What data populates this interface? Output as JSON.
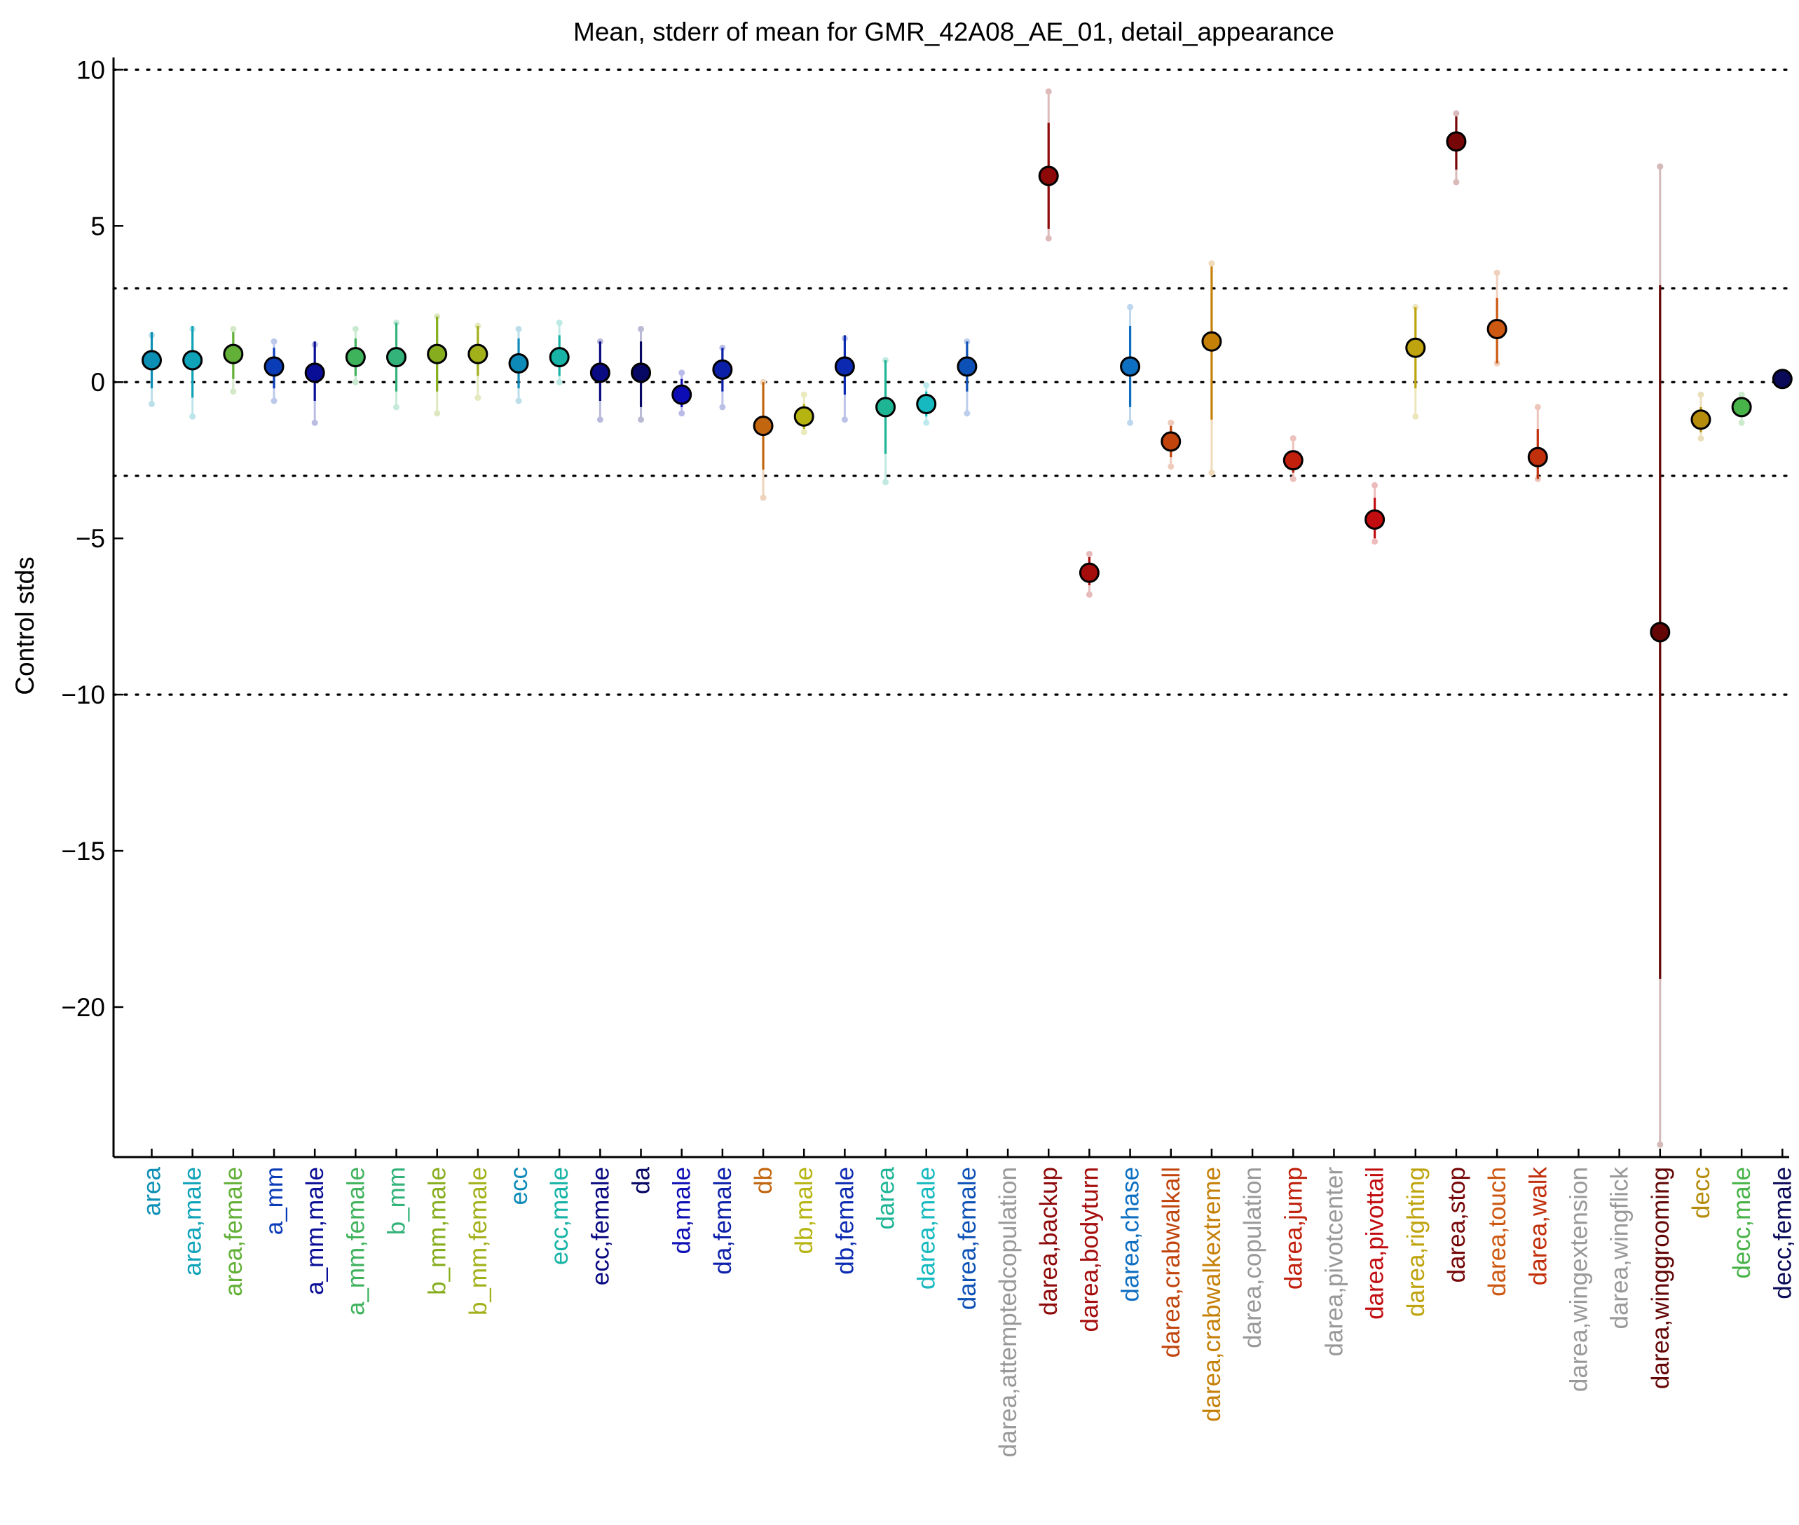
{
  "chart_data": {
    "type": "scatter",
    "title": "Mean, stderr of mean for GMR_42A08_AE_01, detail_appearance",
    "xlabel": "",
    "ylabel": "Control stds",
    "ylim": [
      -24.8,
      10.3
    ],
    "yticks": [
      10,
      5,
      0,
      -5,
      -10,
      -15,
      -20
    ],
    "reference_lines": [
      10,
      3,
      0,
      -3,
      -10
    ],
    "grid": false,
    "series": [
      {
        "label": "area",
        "mean": 0.7,
        "se_lo": -0.2,
        "se_hi": 1.6,
        "range_lo": -0.7,
        "range_hi": 1.5,
        "color": "#0c8fb4"
      },
      {
        "label": "area,male",
        "mean": 0.7,
        "se_lo": -0.5,
        "se_hi": 1.8,
        "range_lo": -1.1,
        "range_hi": 1.7,
        "color": "#0fa3b9"
      },
      {
        "label": "area,female",
        "mean": 0.9,
        "se_lo": 0.1,
        "se_hi": 1.6,
        "range_lo": -0.3,
        "range_hi": 1.7,
        "color": "#62b037"
      },
      {
        "label": "a_mm",
        "mean": 0.5,
        "se_lo": -0.2,
        "se_hi": 1.1,
        "range_lo": -0.6,
        "range_hi": 1.3,
        "color": "#0b3cb8"
      },
      {
        "label": "a_mm,male",
        "mean": 0.3,
        "se_lo": -0.6,
        "se_hi": 1.3,
        "range_lo": -1.3,
        "range_hi": 1.2,
        "color": "#0a0e96"
      },
      {
        "label": "a_mm,female",
        "mean": 0.8,
        "se_lo": 0.2,
        "se_hi": 1.4,
        "range_lo": 0.0,
        "range_hi": 1.7,
        "color": "#3fb25c"
      },
      {
        "label": "b_mm",
        "mean": 0.8,
        "se_lo": -0.3,
        "se_hi": 1.9,
        "range_lo": -0.8,
        "range_hi": 1.9,
        "color": "#33b37a"
      },
      {
        "label": "b_mm,male",
        "mean": 0.9,
        "se_lo": -0.3,
        "se_hi": 2.1,
        "range_lo": -1.0,
        "range_hi": 2.1,
        "color": "#86ad1d"
      },
      {
        "label": "b_mm,female",
        "mean": 0.9,
        "se_lo": 0.2,
        "se_hi": 1.8,
        "range_lo": -0.5,
        "range_hi": 1.8,
        "color": "#a2b019"
      },
      {
        "label": "ecc",
        "mean": 0.6,
        "se_lo": -0.2,
        "se_hi": 1.4,
        "range_lo": -0.6,
        "range_hi": 1.7,
        "color": "#0e8ab8"
      },
      {
        "label": "ecc,male",
        "mean": 0.8,
        "se_lo": 0.2,
        "se_hi": 1.5,
        "range_lo": 0.0,
        "range_hi": 1.9,
        "color": "#17b3a6"
      },
      {
        "label": "ecc,female",
        "mean": 0.3,
        "se_lo": -0.6,
        "se_hi": 1.3,
        "range_lo": -1.2,
        "range_hi": 1.3,
        "color": "#0a0a82"
      },
      {
        "label": "da",
        "mean": 0.3,
        "se_lo": -0.8,
        "se_hi": 1.3,
        "range_lo": -1.2,
        "range_hi": 1.7,
        "color": "#070764"
      },
      {
        "label": "da,male",
        "mean": -0.4,
        "se_lo": -0.8,
        "se_hi": 0.1,
        "range_lo": -1.0,
        "range_hi": 0.3,
        "color": "#0d0db5"
      },
      {
        "label": "da,female",
        "mean": 0.4,
        "se_lo": -0.3,
        "se_hi": 1.1,
        "range_lo": -0.8,
        "range_hi": 1.1,
        "color": "#0c1fa8"
      },
      {
        "label": "db",
        "mean": -1.4,
        "se_lo": -2.8,
        "se_hi": 0.0,
        "range_lo": -3.7,
        "range_hi": 0.0,
        "color": "#c2660f"
      },
      {
        "label": "db,male",
        "mean": -1.1,
        "se_lo": -1.5,
        "se_hi": -0.7,
        "range_lo": -1.6,
        "range_hi": -0.4,
        "color": "#b6b410"
      },
      {
        "label": "db,female",
        "mean": 0.5,
        "se_lo": -0.4,
        "se_hi": 1.5,
        "range_lo": -1.2,
        "range_hi": 1.4,
        "color": "#0b2ab1"
      },
      {
        "label": "darea",
        "mean": -0.8,
        "se_lo": -2.3,
        "se_hi": 0.7,
        "range_lo": -3.2,
        "range_hi": 0.7,
        "color": "#1eb595"
      },
      {
        "label": "darea,male",
        "mean": -0.7,
        "se_lo": -1.1,
        "se_hi": -0.3,
        "range_lo": -1.3,
        "range_hi": -0.1,
        "color": "#15b9bf"
      },
      {
        "label": "darea,female",
        "mean": 0.5,
        "se_lo": -0.3,
        "se_hi": 1.3,
        "range_lo": -1.0,
        "range_hi": 1.3,
        "color": "#0e51b6"
      },
      {
        "label": "darea,attemptedcopulation",
        "color": "#999999"
      },
      {
        "label": "darea,backup",
        "mean": 6.6,
        "se_lo": 4.9,
        "se_hi": 8.3,
        "range_lo": 4.6,
        "range_hi": 9.3,
        "color": "#8e0a0a"
      },
      {
        "label": "darea,bodyturn",
        "mean": -6.1,
        "se_lo": -6.5,
        "se_hi": -5.6,
        "range_lo": -6.8,
        "range_hi": -5.5,
        "color": "#a50c0c"
      },
      {
        "label": "darea,chase",
        "mean": 0.5,
        "se_lo": -0.8,
        "se_hi": 1.8,
        "range_lo": -1.3,
        "range_hi": 2.4,
        "color": "#0e6fc1"
      },
      {
        "label": "darea,crabwalkall",
        "mean": -1.9,
        "se_lo": -2.4,
        "se_hi": -1.4,
        "range_lo": -2.7,
        "range_hi": -1.3,
        "color": "#c1440c"
      },
      {
        "label": "darea,crabwalkextreme",
        "mean": 1.3,
        "se_lo": -1.2,
        "se_hi": 3.7,
        "range_lo": -2.9,
        "range_hi": 3.8,
        "color": "#c58008"
      },
      {
        "label": "darea,copulation",
        "color": "#999999"
      },
      {
        "label": "darea,jump",
        "mean": -2.5,
        "se_lo": -2.9,
        "se_hi": -2.2,
        "range_lo": -3.1,
        "range_hi": -1.8,
        "color": "#c0200c"
      },
      {
        "label": "darea,pivotcenter",
        "color": "#999999"
      },
      {
        "label": "darea,pivottail",
        "mean": -4.4,
        "se_lo": -5.0,
        "se_hi": -3.7,
        "range_lo": -5.1,
        "range_hi": -3.3,
        "color": "#c20d10"
      },
      {
        "label": "darea,righting",
        "mean": 1.1,
        "se_lo": -0.2,
        "se_hi": 2.4,
        "range_lo": -1.1,
        "range_hi": 2.4,
        "color": "#bfa40f"
      },
      {
        "label": "darea,stop",
        "mean": 7.7,
        "se_lo": 6.8,
        "se_hi": 8.5,
        "range_lo": 6.4,
        "range_hi": 8.6,
        "color": "#760607"
      },
      {
        "label": "darea,touch",
        "mean": 1.7,
        "se_lo": 0.6,
        "se_hi": 2.7,
        "range_lo": 0.6,
        "range_hi": 3.5,
        "color": "#cc5812"
      },
      {
        "label": "darea,walk",
        "mean": -2.4,
        "se_lo": -3.1,
        "se_hi": -1.5,
        "range_lo": -3.1,
        "range_hi": -0.8,
        "color": "#c1300c"
      },
      {
        "label": "darea,wingextension",
        "color": "#999999"
      },
      {
        "label": "darea,wingflick",
        "color": "#999999"
      },
      {
        "label": "darea,winggrooming",
        "mean": -8.0,
        "se_lo": -19.1,
        "se_hi": 3.1,
        "range_lo": -24.4,
        "range_hi": 6.9,
        "color": "#640606"
      },
      {
        "label": "decc",
        "mean": -1.2,
        "se_lo": -1.6,
        "se_hi": -0.8,
        "range_lo": -1.8,
        "range_hi": -0.4,
        "color": "#b58c0c"
      },
      {
        "label": "decc,male",
        "mean": -0.8,
        "se_lo": -1.1,
        "se_hi": -0.6,
        "range_lo": -1.3,
        "range_hi": -0.4,
        "color": "#48b348"
      },
      {
        "label": "decc,female",
        "mean": 0.1,
        "se_lo": -0.1,
        "se_hi": 0.2,
        "range_lo": -0.1,
        "range_hi": 0.2,
        "color": "#0a0a58"
      }
    ]
  }
}
